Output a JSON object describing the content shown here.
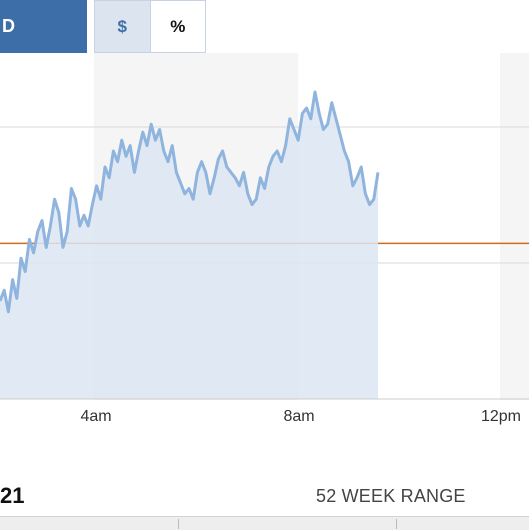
{
  "controls": {
    "period_button": "D",
    "dollar_toggle": "$",
    "percent_toggle": "%"
  },
  "chart_data": {
    "type": "line",
    "xlabels": [
      "4am",
      "8am",
      "12pm"
    ],
    "series": [
      {
        "values": [
          0.78,
          0.74,
          0.82,
          0.7,
          0.77,
          0.62,
          0.67,
          0.55,
          0.6,
          0.52,
          0.48,
          0.58,
          0.5,
          0.4,
          0.45,
          0.58,
          0.52,
          0.36,
          0.4,
          0.5,
          0.46,
          0.5,
          0.42,
          0.35,
          0.4,
          0.28,
          0.32,
          0.22,
          0.26,
          0.18,
          0.24,
          0.2,
          0.3,
          0.22,
          0.15,
          0.2,
          0.12,
          0.18,
          0.14,
          0.22,
          0.26,
          0.2,
          0.3,
          0.34,
          0.38,
          0.36,
          0.4,
          0.3,
          0.26,
          0.3,
          0.38,
          0.32,
          0.25,
          0.22,
          0.28,
          0.3,
          0.32,
          0.35,
          0.3,
          0.38,
          0.42,
          0.4,
          0.32,
          0.36,
          0.28,
          0.24,
          0.22,
          0.26,
          0.2,
          0.1,
          0.14,
          0.18,
          0.08,
          0.06,
          0.1,
          0.0,
          0.08,
          0.14,
          0.12,
          0.04,
          0.1,
          0.16,
          0.22,
          0.26,
          0.35,
          0.32,
          0.28,
          0.38,
          0.42,
          0.4,
          0.3
        ]
      }
    ],
    "baseline": 0.565,
    "grid": true
  },
  "footer": {
    "price_fragment": "21",
    "range_label": "52 WEEK RANGE"
  }
}
